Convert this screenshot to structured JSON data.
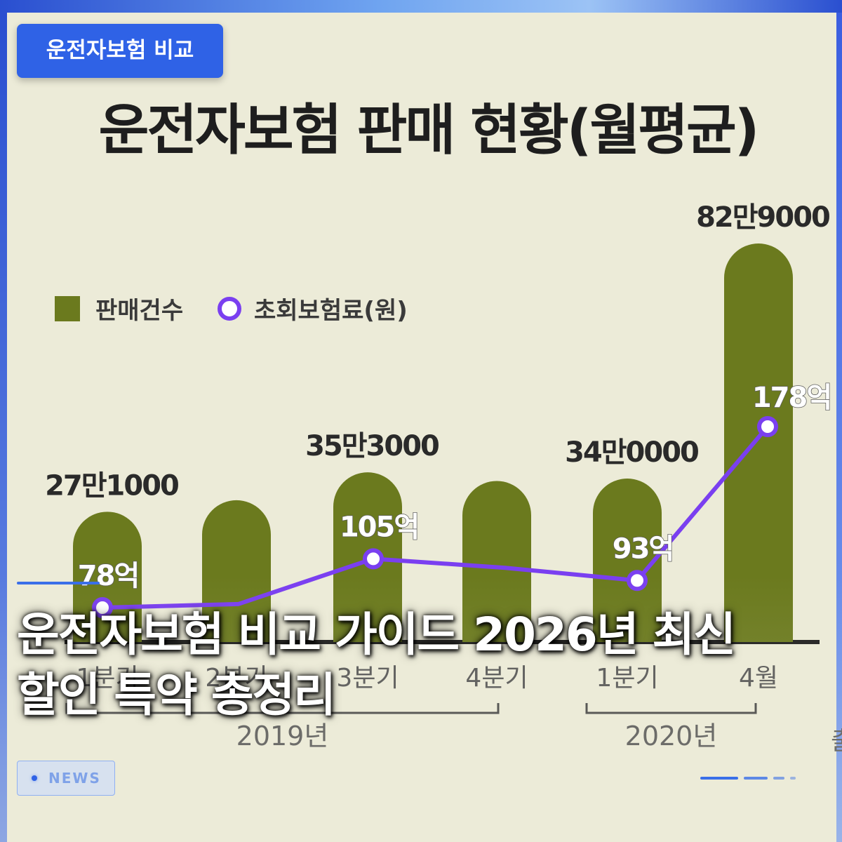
{
  "tag": {
    "label": "운전자보험 비교"
  },
  "headline": {
    "line1": "운전자보험 비교 가이드 2026년 최신",
    "line2": "할인 특약 총정리"
  },
  "badge": {
    "label": "NEWS"
  },
  "colors": {
    "accent": "#2f62e6",
    "bar": "#6b7a1e",
    "line": "#7a3ff0",
    "background": "#ecebd8"
  },
  "chart_data": {
    "type": "bar",
    "title": "운전자보험 판매 현황(월평균)",
    "legend": {
      "position": "top-left",
      "items": [
        {
          "label": "판매건수",
          "marker": "square"
        },
        {
          "label": "초회보험료(원)",
          "marker": "circle"
        }
      ]
    },
    "categories": [
      "1분기",
      "2분기",
      "3분기",
      "4분기",
      "1분기",
      "4월"
    ],
    "groups": [
      {
        "label": "2019년",
        "from": 0,
        "to": 3
      },
      {
        "label": "2020년",
        "from": 4,
        "to": 5
      }
    ],
    "series": [
      {
        "name": "판매건수",
        "type": "bar",
        "values": [
          271000,
          295000,
          353000,
          335000,
          340000,
          829000
        ],
        "value_labels": [
          "27만1000",
          "",
          "35만3000",
          "",
          "34만0000",
          "82만9000"
        ]
      },
      {
        "name": "초회보험료(원)",
        "type": "line",
        "values": [
          78,
          80,
          105,
          100,
          93,
          178
        ],
        "value_labels": [
          "78억",
          "",
          "105억",
          "",
          "93억",
          "178억"
        ]
      }
    ],
    "source_label": "출"
  }
}
